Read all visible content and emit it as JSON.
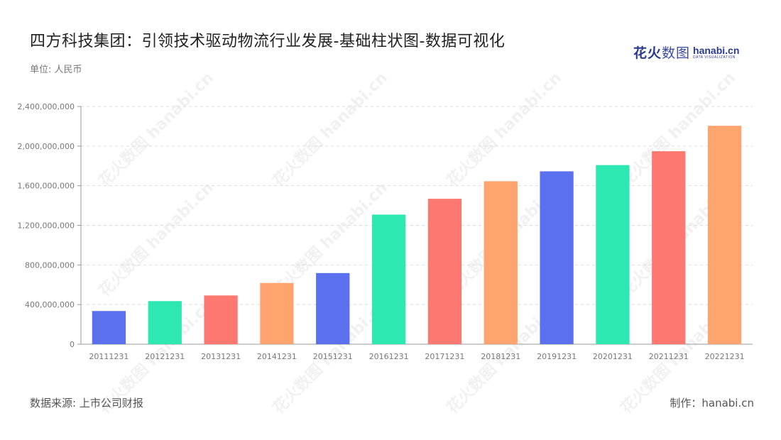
{
  "header": {
    "title": "四方科技集团：引领技术驱动物流行业发展-基础柱状图-数据可视化",
    "unit": "单位: 人民币"
  },
  "logo": {
    "cn_part1": "花火",
    "cn_part2": "数图",
    "en_main": "hanabi.cn",
    "en_sub": "DATA VISUALIZATION"
  },
  "footer": {
    "source": "数据来源: 上市公司财报",
    "maker": "制作：hanabi.cn"
  },
  "watermark": {
    "text": "花火数图 hanabi.cn"
  },
  "colors": {
    "palette": [
      "#5b70ee",
      "#2de8b0",
      "#fe7872",
      "#ffa46e"
    ],
    "grid": "#dddddd",
    "axis": "#999999"
  },
  "chart_data": {
    "type": "bar",
    "title": "",
    "xlabel": "",
    "ylabel": "",
    "categories": [
      "20111231",
      "20121231",
      "20131231",
      "20141231",
      "20151231",
      "20161231",
      "20171231",
      "20181231",
      "20191231",
      "20201231",
      "20211231",
      "20221231"
    ],
    "values": [
      335000000,
      435000000,
      492000000,
      618000000,
      718000000,
      1308000000,
      1468000000,
      1645000000,
      1745000000,
      1808000000,
      1948000000,
      2205000000
    ],
    "ylim": [
      0,
      2400000000
    ],
    "yticks": [
      0,
      400000000,
      800000000,
      1200000000,
      1600000000,
      2000000000,
      2400000000
    ],
    "ytick_labels": [
      "0",
      "400,000,000",
      "800,000,000",
      "1,200,000,000",
      "1,600,000,000",
      "2,000,000,000",
      "2,400,000,000"
    ],
    "grid": true,
    "legend": false
  }
}
